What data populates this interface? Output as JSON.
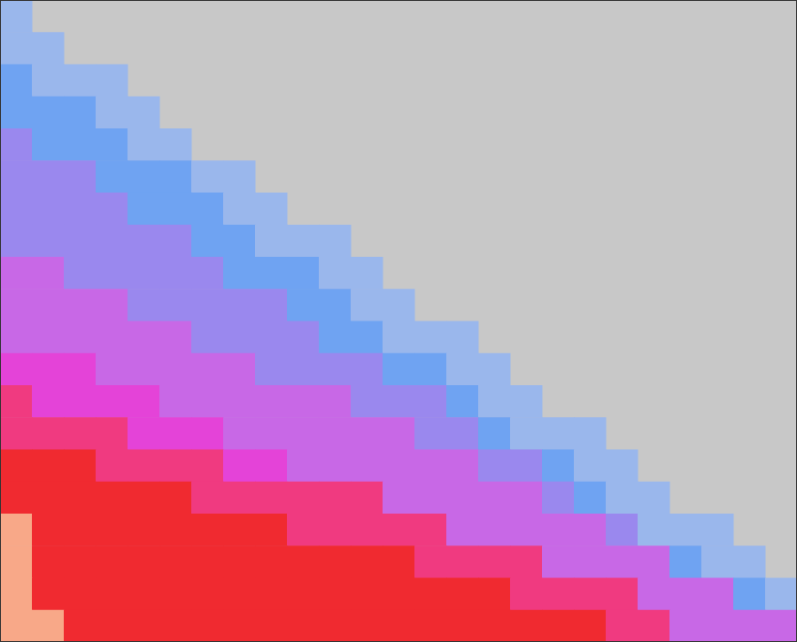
{
  "chart_data": {
    "type": "heatmap",
    "tick_labels": false,
    "grid": false,
    "cells": [
      [
        1,
        0,
        0,
        0,
        0,
        0,
        0,
        0,
        0,
        0,
        0,
        0,
        0,
        0,
        0,
        0,
        0,
        0,
        0,
        0,
        0,
        0,
        0,
        0,
        0
      ],
      [
        1,
        1,
        0,
        0,
        0,
        0,
        0,
        0,
        0,
        0,
        0,
        0,
        0,
        0,
        0,
        0,
        0,
        0,
        0,
        0,
        0,
        0,
        0,
        0,
        0
      ],
      [
        2,
        1,
        1,
        1,
        0,
        0,
        0,
        0,
        0,
        0,
        0,
        0,
        0,
        0,
        0,
        0,
        0,
        0,
        0,
        0,
        0,
        0,
        0,
        0,
        0
      ],
      [
        2,
        2,
        2,
        1,
        1,
        0,
        0,
        0,
        0,
        0,
        0,
        0,
        0,
        0,
        0,
        0,
        0,
        0,
        0,
        0,
        0,
        0,
        0,
        0,
        0
      ],
      [
        3,
        2,
        2,
        2,
        1,
        1,
        0,
        0,
        0,
        0,
        0,
        0,
        0,
        0,
        0,
        0,
        0,
        0,
        0,
        0,
        0,
        0,
        0,
        0,
        0
      ],
      [
        3,
        3,
        3,
        2,
        2,
        2,
        1,
        1,
        0,
        0,
        0,
        0,
        0,
        0,
        0,
        0,
        0,
        0,
        0,
        0,
        0,
        0,
        0,
        0,
        0
      ],
      [
        3,
        3,
        3,
        3,
        2,
        2,
        2,
        1,
        1,
        0,
        0,
        0,
        0,
        0,
        0,
        0,
        0,
        0,
        0,
        0,
        0,
        0,
        0,
        0,
        0
      ],
      [
        3,
        3,
        3,
        3,
        3,
        3,
        2,
        2,
        1,
        1,
        1,
        0,
        0,
        0,
        0,
        0,
        0,
        0,
        0,
        0,
        0,
        0,
        0,
        0,
        0
      ],
      [
        4,
        4,
        3,
        3,
        3,
        3,
        3,
        2,
        2,
        2,
        1,
        1,
        0,
        0,
        0,
        0,
        0,
        0,
        0,
        0,
        0,
        0,
        0,
        0,
        0
      ],
      [
        5,
        4,
        4,
        4,
        3,
        3,
        3,
        3,
        3,
        2,
        2,
        1,
        1,
        0,
        0,
        0,
        0,
        0,
        0,
        0,
        0,
        0,
        0,
        0,
        0
      ],
      [
        5,
        5,
        5,
        5,
        4,
        4,
        3,
        3,
        3,
        3,
        2,
        2,
        1,
        1,
        1,
        0,
        0,
        0,
        0,
        0,
        0,
        0,
        0,
        0,
        0
      ],
      [
        6,
        6,
        6,
        5,
        5,
        5,
        4,
        4,
        3,
        3,
        3,
        3,
        2,
        2,
        1,
        1,
        0,
        0,
        0,
        0,
        0,
        0,
        0,
        0,
        0
      ],
      [
        7,
        6,
        6,
        6,
        6,
        5,
        5,
        5,
        4,
        4,
        4,
        3,
        3,
        3,
        2,
        1,
        1,
        0,
        0,
        0,
        0,
        0,
        0,
        0,
        0
      ],
      [
        7,
        7,
        7,
        7,
        6,
        6,
        6,
        5,
        5,
        5,
        4,
        4,
        4,
        3,
        3,
        2,
        1,
        1,
        1,
        0,
        0,
        0,
        0,
        0,
        0
      ],
      [
        8,
        8,
        8,
        7,
        7,
        7,
        7,
        6,
        6,
        5,
        5,
        5,
        5,
        4,
        4,
        3,
        3,
        2,
        1,
        1,
        0,
        0,
        0,
        0,
        0
      ],
      [
        8,
        8,
        8,
        8,
        8,
        8,
        7,
        7,
        7,
        7,
        7,
        7,
        5,
        5,
        5,
        4,
        4,
        3,
        2,
        1,
        1,
        0,
        0,
        0,
        0
      ],
      [
        9,
        8,
        8,
        8,
        8,
        8,
        8,
        8,
        8,
        7,
        7,
        7,
        7,
        7,
        5,
        5,
        5,
        4,
        4,
        3,
        1,
        1,
        1,
        0,
        0
      ],
      [
        9,
        8,
        8,
        8,
        8,
        8,
        8,
        8,
        8,
        8,
        8,
        8,
        8,
        7,
        7,
        7,
        7,
        5,
        5,
        4,
        4,
        2,
        1,
        1,
        0
      ],
      [
        9,
        8,
        8,
        8,
        8,
        8,
        8,
        8,
        8,
        8,
        8,
        8,
        8,
        8,
        8,
        8,
        7,
        7,
        7,
        7,
        5,
        4,
        4,
        2,
        1
      ],
      [
        9,
        9,
        8,
        8,
        8,
        8,
        8,
        8,
        8,
        8,
        8,
        8,
        8,
        8,
        8,
        8,
        8,
        8,
        8,
        7,
        7,
        5,
        5,
        5,
        4
      ]
    ]
  }
}
